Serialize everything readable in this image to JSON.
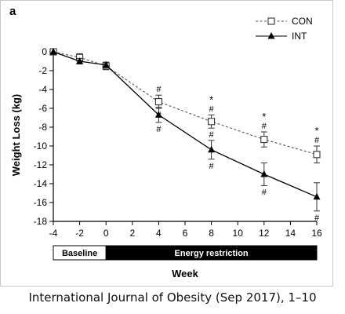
{
  "chart_data": {
    "type": "line",
    "panel_label": "a",
    "ylabel": "Weight Loss (kg)",
    "xlabel": "Week",
    "x_ticks": [
      -4,
      -2,
      0,
      2,
      4,
      6,
      8,
      10,
      12,
      14,
      16
    ],
    "y_ticks": [
      0,
      -2,
      -4,
      -6,
      -8,
      -10,
      -12,
      -14,
      -16,
      -18
    ],
    "xlim": [
      -4,
      16
    ],
    "ylim": [
      -18,
      0
    ],
    "grid": false,
    "legend_position": "top-right",
    "series": [
      {
        "name": "CON",
        "marker": "open-square",
        "line": "dashed",
        "x": [
          -4,
          -2,
          0,
          4,
          8,
          12,
          16
        ],
        "y": [
          0,
          -0.6,
          -1.5,
          -5.3,
          -7.4,
          -9.3,
          -10.9
        ],
        "error": [
          0,
          0.4,
          0.4,
          0.7,
          0.7,
          0.8,
          0.9
        ],
        "annotations": [
          {
            "x": 4,
            "above": [
              "#"
            ],
            "below": [
              "#"
            ]
          },
          {
            "x": 8,
            "above": [
              "*",
              "#"
            ],
            "below": [
              "#"
            ]
          },
          {
            "x": 12,
            "above": [
              "*",
              "#"
            ],
            "below": []
          },
          {
            "x": 16,
            "above": [
              "*",
              "#"
            ],
            "below": []
          }
        ]
      },
      {
        "name": "INT",
        "marker": "filled-triangle",
        "line": "solid",
        "x": [
          -4,
          -2,
          0,
          4,
          8,
          12,
          16
        ],
        "y": [
          0,
          -1.0,
          -1.4,
          -6.7,
          -10.4,
          -13.0,
          -15.4
        ],
        "error": [
          0,
          0.3,
          0.3,
          0.8,
          1.0,
          1.2,
          1.5
        ],
        "annotations": [
          {
            "x": 4,
            "above": [],
            "below": [
              "#"
            ]
          },
          {
            "x": 8,
            "above": [],
            "below": [
              "#"
            ]
          },
          {
            "x": 12,
            "above": [],
            "below": [
              "#"
            ]
          },
          {
            "x": 16,
            "above": [],
            "below": [
              "#"
            ]
          }
        ]
      }
    ],
    "phases": [
      {
        "label": "Baseline",
        "x_start": -4,
        "x_end": 0,
        "fill": "#ffffff",
        "text_color": "#000000"
      },
      {
        "label": "Energy restriction",
        "x_start": 0,
        "x_end": 16,
        "fill": "#000000",
        "text_color": "#ffffff"
      }
    ]
  },
  "caption": "International Journal of Obesity (Sep 2017), 1–10"
}
